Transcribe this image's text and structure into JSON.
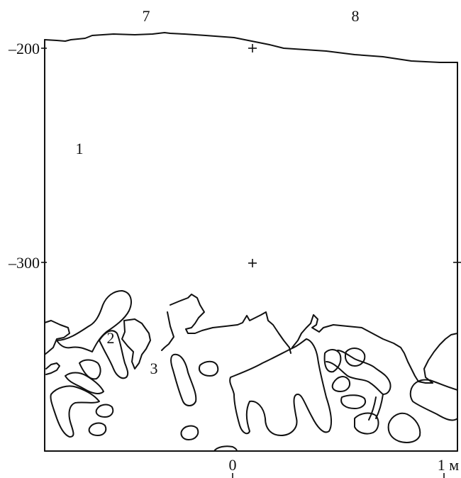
{
  "column_labels": {
    "left": "7",
    "right": "8"
  },
  "depth_labels": {
    "upper": "–200",
    "lower": "–300"
  },
  "unit_labels": {
    "one": "1",
    "two": "2",
    "three": "3"
  },
  "scale_labels": {
    "zero": "0",
    "one_meter": "1 м"
  }
}
